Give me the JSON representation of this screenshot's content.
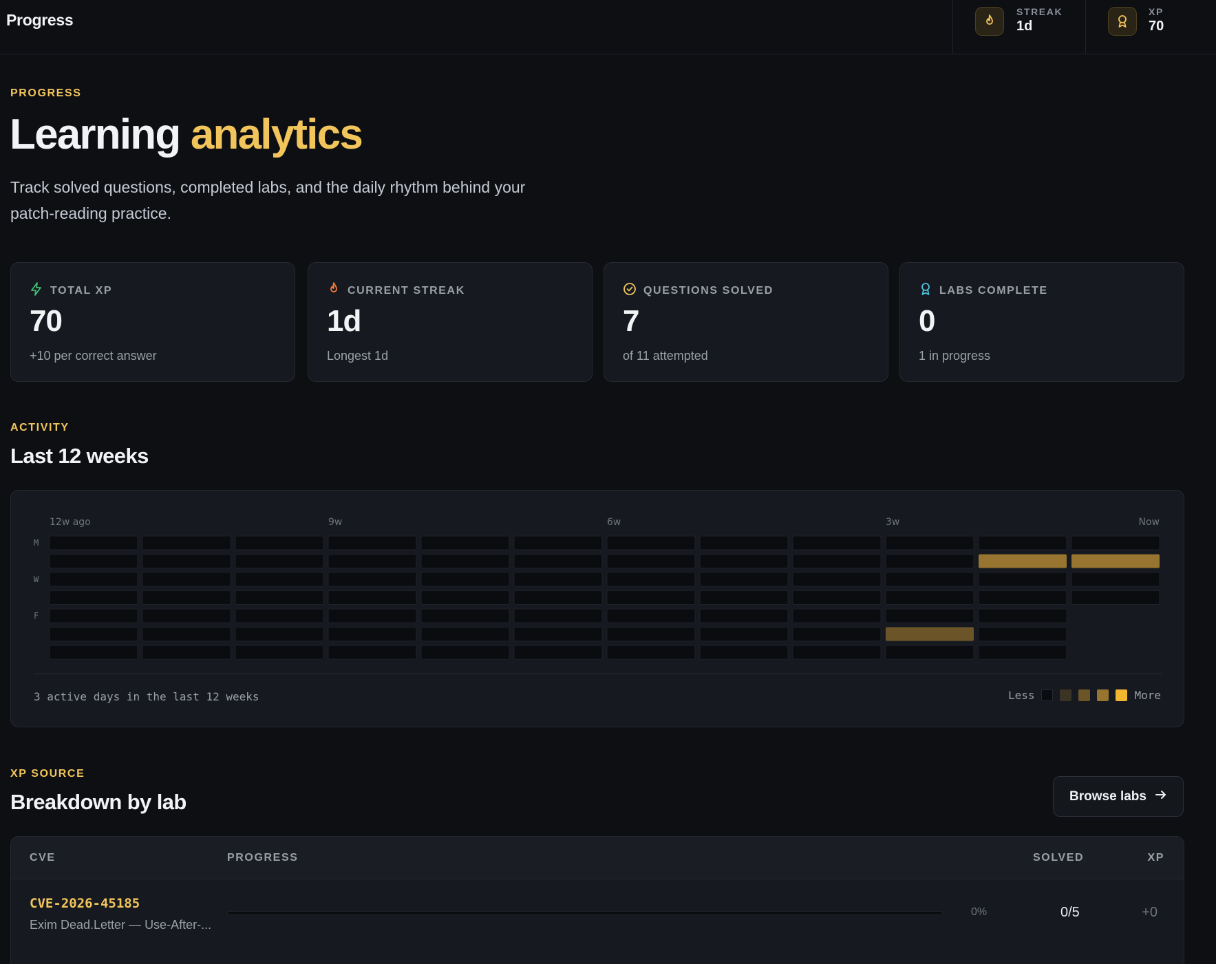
{
  "topbar": {
    "title": "Progress",
    "streak": {
      "label": "STREAK",
      "value": "1d",
      "icon": "flame-icon"
    },
    "xp": {
      "label": "XP",
      "value": "70",
      "icon": "award-icon"
    }
  },
  "hero": {
    "eyebrow": "PROGRESS",
    "title_main": "Learning",
    "title_accent": "analytics",
    "lead": "Track solved questions, completed labs, and the daily rhythm behind your patch-reading practice."
  },
  "stats": [
    {
      "label": "TOTAL XP",
      "value": "70",
      "sub": "+10 per correct answer",
      "icon": "bolt-icon",
      "color": "#3fbf74"
    },
    {
      "label": "CURRENT STREAK",
      "value": "1d",
      "sub": "Longest 1d",
      "icon": "flame-icon",
      "color": "#f07a3a"
    },
    {
      "label": "QUESTIONS SOLVED",
      "value": "7",
      "sub": "of 11 attempted",
      "icon": "check-circle-icon",
      "color": "#f2c55c"
    },
    {
      "label": "LABS COMPLETE",
      "value": "0",
      "sub": "1 in progress",
      "icon": "award-icon",
      "color": "#4fc3e0"
    }
  ],
  "activity": {
    "eyebrow": "ACTIVITY",
    "title": "Last 12 weeks",
    "col_labels": [
      "12w ago",
      "9w",
      "6w",
      "3w",
      "Now"
    ],
    "row_labels": [
      "M",
      "",
      "W",
      "",
      "F",
      "",
      ""
    ],
    "weeks": 12,
    "days": 7,
    "today": {
      "week": 11,
      "day": 3
    },
    "active": [
      {
        "week": 10,
        "day": 1,
        "level": 3
      },
      {
        "week": 11,
        "day": 1,
        "level": 3
      },
      {
        "week": 9,
        "day": 5,
        "level": 2
      }
    ],
    "caption": "3 active days in the last 12 weeks",
    "legend": {
      "less": "Less",
      "more": "More"
    },
    "colors": {
      "empty": "#0b0c10",
      "levels": [
        "#0b0c10",
        "#3b3424",
        "#6b5528",
        "#97742f",
        "#f2b531"
      ]
    }
  },
  "xp_source": {
    "eyebrow": "XP SOURCE",
    "title": "Breakdown by lab",
    "browse_label": "Browse labs",
    "columns": {
      "cve": "CVE",
      "progress": "PROGRESS",
      "solved": "SOLVED",
      "xp": "XP"
    },
    "rows": [
      {
        "cve": "CVE-2026-45185",
        "desc": "Exim Dead.Letter — Use-After-...",
        "progress": 0,
        "percent": "0%",
        "solved": "0/5",
        "xp": "+0"
      }
    ]
  }
}
